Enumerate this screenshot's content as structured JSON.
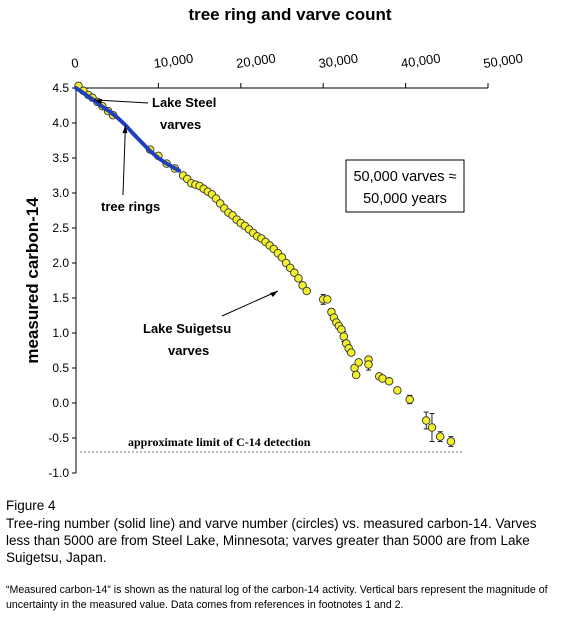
{
  "chart_data": {
    "type": "scatter",
    "title": "tree ring and varve count",
    "xlabel": "",
    "ylabel": "measured carbon-14",
    "xlim": [
      0,
      50000
    ],
    "ylim": [
      -1.0,
      4.5
    ],
    "x_ticks": [
      "0",
      "10,000",
      "20,000",
      "30,000",
      "40,000",
      "50,000"
    ],
    "x_tick_values": [
      0,
      10000,
      20000,
      30000,
      40000,
      50000
    ],
    "y_ticks": [
      "4.5",
      "4.0",
      "3.5",
      "3.0",
      "2.5",
      "2.0",
      "1.5",
      "1.0",
      "0.5",
      "0.0",
      "-0.5",
      "-1.0"
    ],
    "y_tick_values": [
      4.5,
      4.0,
      3.5,
      3.0,
      2.5,
      2.0,
      1.5,
      1.0,
      0.5,
      0.0,
      -0.5,
      -1.0
    ],
    "series": [
      {
        "name": "tree rings",
        "kind": "line",
        "color": "#1f3fbf",
        "points": [
          [
            0,
            4.5
          ],
          [
            1000,
            4.42
          ],
          [
            2000,
            4.34
          ],
          [
            3000,
            4.25
          ],
          [
            4000,
            4.17
          ],
          [
            5000,
            4.08
          ],
          [
            6000,
            3.97
          ],
          [
            7000,
            3.84
          ],
          [
            8000,
            3.72
          ],
          [
            9000,
            3.6
          ],
          [
            10000,
            3.5
          ],
          [
            11000,
            3.42
          ],
          [
            12500,
            3.32
          ]
        ]
      },
      {
        "name": "Lake Steel varves",
        "kind": "circles",
        "color": "#f2f02a",
        "points": [
          [
            300,
            4.53
          ],
          [
            900,
            4.46
          ],
          [
            1500,
            4.4
          ],
          [
            2000,
            4.36
          ],
          [
            2600,
            4.3
          ],
          [
            3200,
            4.24
          ],
          [
            3900,
            4.17
          ],
          [
            4500,
            4.11
          ]
        ]
      },
      {
        "name": "Lake Suigetsu varves",
        "kind": "circles",
        "color": "#f2f02a",
        "points": [
          [
            9000,
            3.62
          ],
          [
            10000,
            3.53
          ],
          [
            11000,
            3.42
          ],
          [
            12000,
            3.35
          ],
          [
            13000,
            3.25
          ],
          [
            13500,
            3.2
          ],
          [
            14000,
            3.14
          ],
          [
            14500,
            3.12
          ],
          [
            15000,
            3.1
          ],
          [
            15500,
            3.06
          ],
          [
            16000,
            3.02
          ],
          [
            16500,
            2.98
          ],
          [
            17000,
            2.92
          ],
          [
            17500,
            2.85
          ],
          [
            18000,
            2.78
          ],
          [
            18500,
            2.72
          ],
          [
            19000,
            2.68
          ],
          [
            19500,
            2.62
          ],
          [
            20000,
            2.57
          ],
          [
            20500,
            2.53
          ],
          [
            21000,
            2.48
          ],
          [
            21500,
            2.43
          ],
          [
            22000,
            2.38
          ],
          [
            22500,
            2.35
          ],
          [
            23000,
            2.3
          ],
          [
            23500,
            2.25
          ],
          [
            24000,
            2.2
          ],
          [
            24500,
            2.14
          ],
          [
            25000,
            2.08
          ],
          [
            25500,
            2.0
          ],
          [
            26000,
            1.93
          ],
          [
            26500,
            1.86
          ],
          [
            27000,
            1.78
          ],
          [
            27500,
            1.68
          ],
          [
            28000,
            1.6
          ],
          [
            30000,
            1.48
          ],
          [
            30500,
            1.48
          ],
          [
            31000,
            1.3
          ],
          [
            31300,
            1.22
          ],
          [
            31600,
            1.15
          ],
          [
            31900,
            1.1
          ],
          [
            32200,
            1.05
          ],
          [
            32500,
            0.95
          ],
          [
            32800,
            0.85
          ],
          [
            33100,
            0.78
          ],
          [
            33400,
            0.72
          ],
          [
            33800,
            0.5
          ],
          [
            34000,
            0.4
          ],
          [
            34300,
            0.58
          ],
          [
            35500,
            0.62
          ],
          [
            35500,
            0.55
          ],
          [
            36800,
            0.38
          ],
          [
            37200,
            0.35
          ],
          [
            38000,
            0.31
          ],
          [
            39000,
            0.18
          ],
          [
            40500,
            0.05
          ],
          [
            42500,
            -0.25
          ],
          [
            43200,
            -0.35
          ],
          [
            44200,
            -0.48
          ],
          [
            45500,
            -0.55
          ]
        ],
        "error_bars": [
          [
            30000,
            1.48,
            0.07
          ],
          [
            31000,
            1.3,
            0.05
          ],
          [
            32500,
            0.95,
            0.07
          ],
          [
            33100,
            0.78,
            0.05
          ],
          [
            35500,
            0.55,
            0.08
          ],
          [
            36800,
            0.38,
            0.04
          ],
          [
            38000,
            0.31,
            0.03
          ],
          [
            39000,
            0.18,
            0.04
          ],
          [
            40500,
            0.05,
            0.06
          ],
          [
            42500,
            -0.25,
            0.12
          ],
          [
            43200,
            -0.35,
            0.2
          ],
          [
            44200,
            -0.48,
            0.07
          ],
          [
            45500,
            -0.55,
            0.07
          ]
        ]
      }
    ],
    "annotations": [
      {
        "text": [
          "Lake Steel",
          "varves"
        ]
      },
      {
        "text": [
          "tree rings"
        ]
      },
      {
        "text": [
          "Lake Suigetsu",
          "varves"
        ]
      },
      {
        "text": [
          "approximate limit of C-14 detection"
        ],
        "y": -0.7
      }
    ],
    "callout_box": [
      "50,000 varves ≈",
      "50,000 years"
    ],
    "grid": false,
    "legend": "none"
  },
  "figure": {
    "label": "Figure 4",
    "caption": "Tree-ring number (solid line) and varve number (circles) vs. measured carbon-14. Varves less than 5000 are from Steel Lake, Minnesota; varves greater than 5000 are from Lake Suigetsu, Japan.",
    "note": "“Measured carbon-14” is shown as the natural log of the carbon-14 activity. Vertical bars represent the magnitude of uncertainty in the measured value. Data comes from references in footnotes 1 and 2."
  }
}
